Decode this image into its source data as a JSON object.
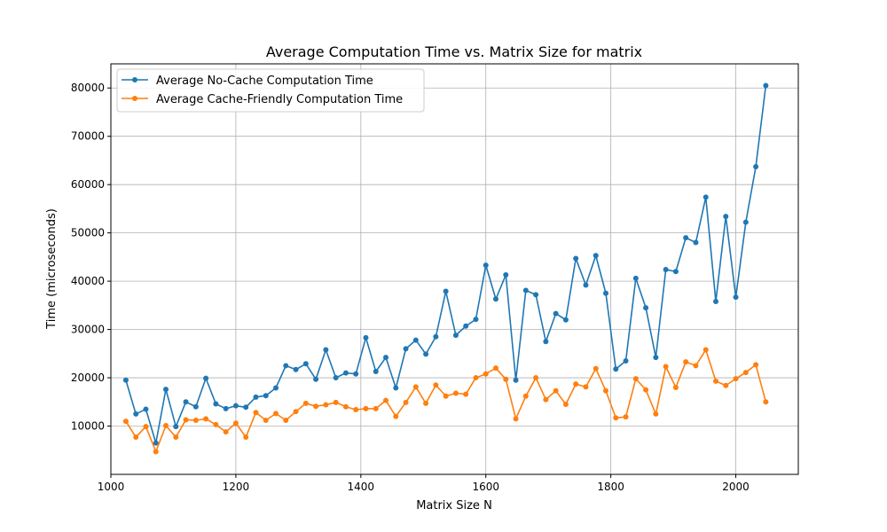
{
  "chart_data": {
    "type": "line",
    "title": "Average Computation Time vs. Matrix Size for matrix",
    "xlabel": "Matrix Size N",
    "ylabel": "Time (microseconds)",
    "xlim": [
      1000,
      2100
    ],
    "ylim": [
      0,
      85000
    ],
    "xticks": [
      1000,
      1200,
      1400,
      1600,
      1800,
      2000
    ],
    "yticks": [
      10000,
      20000,
      30000,
      40000,
      50000,
      60000,
      70000,
      80000
    ],
    "grid": true,
    "legend_position": "top-left",
    "x": [
      1024,
      1040,
      1056,
      1072,
      1088,
      1104,
      1120,
      1136,
      1152,
      1168,
      1184,
      1200,
      1216,
      1232,
      1248,
      1264,
      1280,
      1296,
      1312,
      1328,
      1344,
      1360,
      1376,
      1392,
      1408,
      1424,
      1440,
      1456,
      1472,
      1488,
      1504,
      1520,
      1536,
      1552,
      1568,
      1584,
      1600,
      1616,
      1632,
      1648,
      1664,
      1680,
      1696,
      1712,
      1728,
      1744,
      1760,
      1776,
      1792,
      1808,
      1824,
      1840,
      1856,
      1872,
      1888,
      1904,
      1920,
      1936,
      1952,
      1968,
      1984,
      2000,
      2016,
      2032,
      2048
    ],
    "series": [
      {
        "name": "Average No-Cache Computation Time",
        "color": "#1f77b4",
        "values": [
          19500,
          12500,
          13500,
          6500,
          17600,
          9900,
          15000,
          14000,
          19900,
          14600,
          13600,
          14200,
          13900,
          16000,
          16300,
          17900,
          22500,
          21700,
          22900,
          19700,
          25800,
          20000,
          21000,
          20800,
          28300,
          21300,
          24200,
          17900,
          26000,
          27800,
          24900,
          28500,
          37900,
          28800,
          30700,
          32100,
          43300,
          36300,
          41300,
          19500,
          38100,
          37200,
          27500,
          33300,
          32000,
          44700,
          39200,
          45300,
          37500,
          21800,
          23500,
          40600,
          34500,
          24200,
          42400,
          42000,
          49000,
          48000,
          57400,
          35800,
          53400,
          36700,
          52200,
          63700,
          80500
        ]
      },
      {
        "name": "Average Cache-Friendly Computation Time",
        "color": "#ff7f0e",
        "values": [
          11000,
          7700,
          9900,
          4700,
          10100,
          7700,
          11300,
          11200,
          11500,
          10300,
          8800,
          10600,
          7700,
          12800,
          11200,
          12600,
          11200,
          13000,
          14700,
          14100,
          14400,
          14900,
          14000,
          13400,
          13600,
          13600,
          15300,
          12000,
          14900,
          18100,
          14700,
          18500,
          16200,
          16800,
          16600,
          20000,
          20800,
          22000,
          19700,
          11500,
          16200,
          20000,
          15500,
          17300,
          14500,
          18700,
          18100,
          21900,
          17300,
          11700,
          11900,
          19800,
          17500,
          12500,
          22300,
          18000,
          23300,
          22500,
          25800,
          19300,
          18400,
          19800,
          21100,
          22700,
          15000
        ]
      }
    ]
  }
}
